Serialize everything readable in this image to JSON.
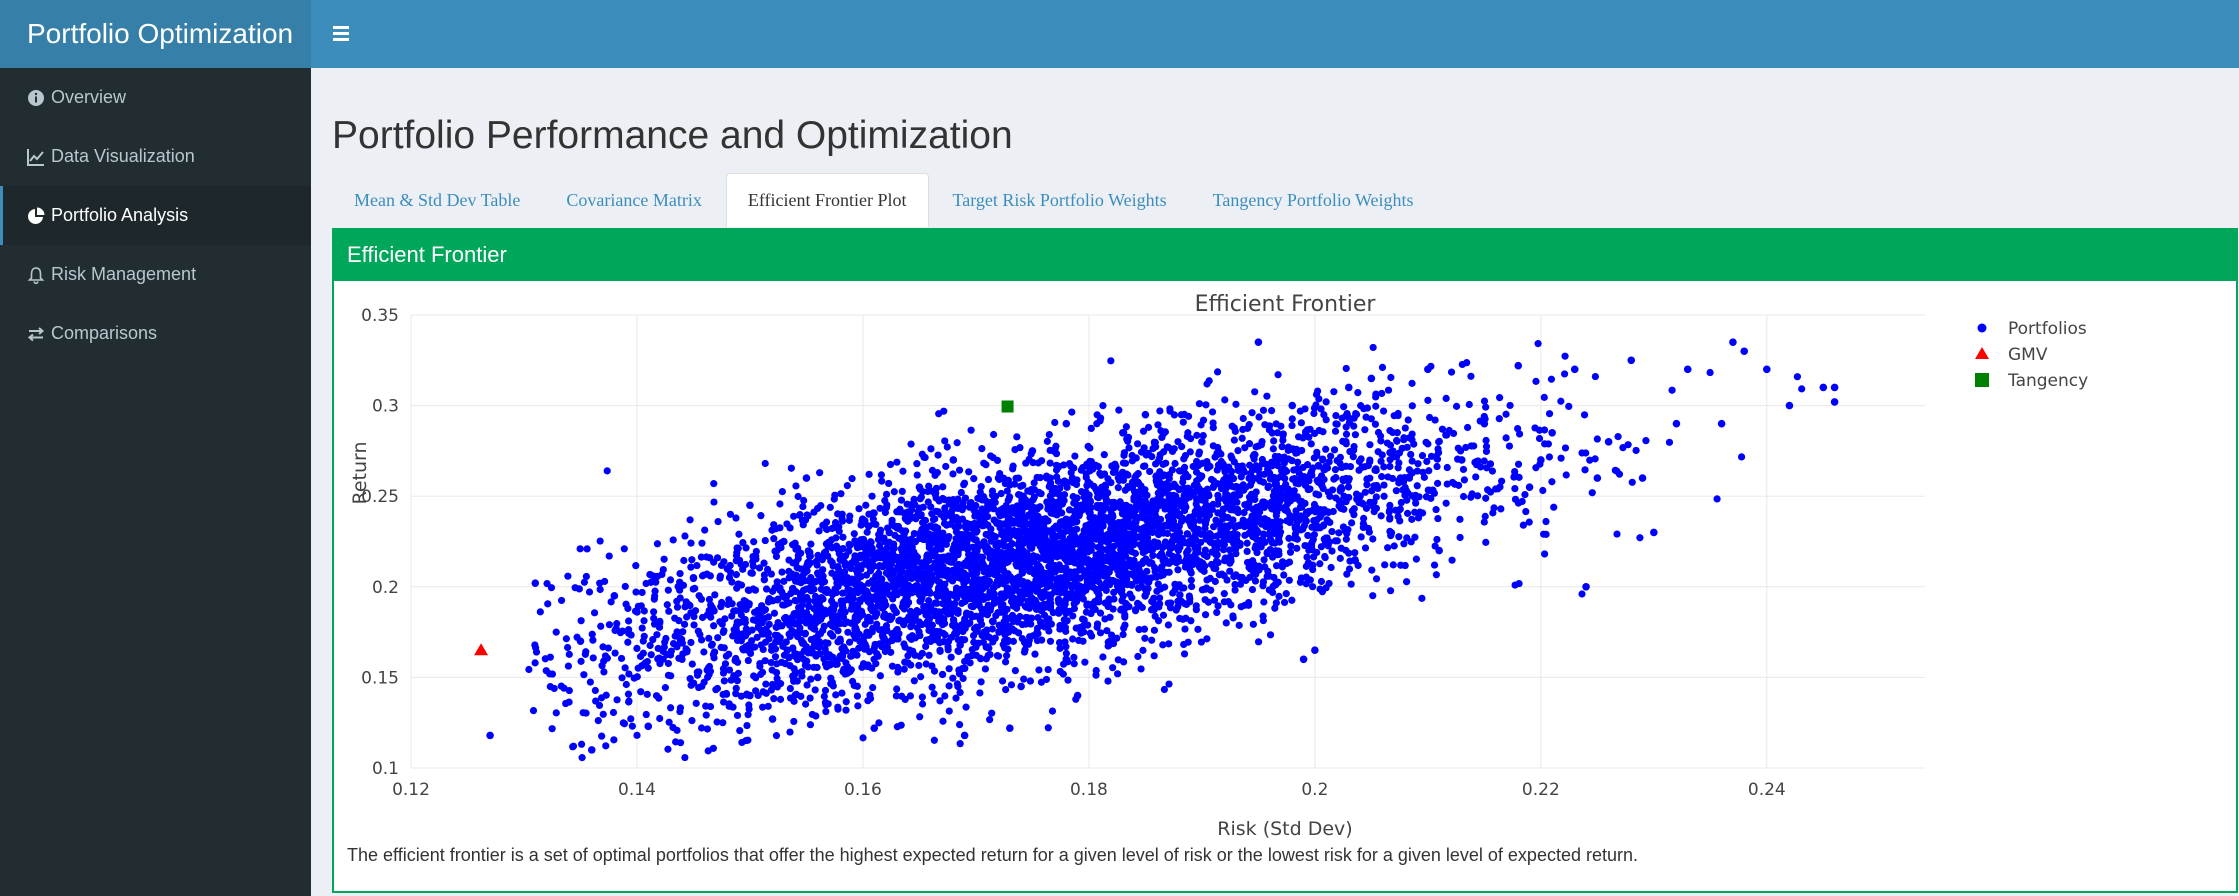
{
  "app": {
    "title": "Portfolio Optimization"
  },
  "sidebar": {
    "items": [
      {
        "label": "Overview",
        "icon": "info-circle-icon",
        "active": false
      },
      {
        "label": "Data Visualization",
        "icon": "line-chart-icon",
        "active": false
      },
      {
        "label": "Portfolio Analysis",
        "icon": "pie-chart-icon",
        "active": true
      },
      {
        "label": "Risk Management",
        "icon": "bell-icon",
        "active": false
      },
      {
        "label": "Comparisons",
        "icon": "exchange-icon",
        "active": false
      }
    ]
  },
  "main": {
    "page_title": "Portfolio Performance and Optimization",
    "tabs": [
      {
        "label": "Mean & Std Dev Table",
        "active": false
      },
      {
        "label": "Covariance Matrix",
        "active": false
      },
      {
        "label": "Efficient Frontier Plot",
        "active": true
      },
      {
        "label": "Target Risk Portfolio Weights",
        "active": false
      },
      {
        "label": "Tangency Portfolio Weights",
        "active": false
      }
    ],
    "box_title": "Efficient Frontier",
    "caption": "The efficient frontier is a set of optimal portfolios that offer the highest expected return for a given level of risk or the lowest risk for a given level of expected return."
  },
  "colors": {
    "header": "#3c8dbc",
    "sidebar": "#222d32",
    "box": "#00a65a",
    "portfolios": "#0000ff",
    "gmv": "#ff0000",
    "tangency": "#008000"
  },
  "chart_data": {
    "type": "scatter",
    "title": "Efficient Frontier",
    "xlabel": "Risk (Std Dev)",
    "ylabel": "Return",
    "xlim": [
      0.12,
      0.254
    ],
    "ylim": [
      0.1,
      0.35
    ],
    "xticks": [
      "0.12",
      "0.14",
      "0.16",
      "0.18",
      "0.2",
      "0.22",
      "0.24"
    ],
    "yticks": [
      "0.1",
      "0.15",
      "0.2",
      "0.25",
      "0.3",
      "0.35"
    ],
    "grid": true,
    "legend_position": "top-right",
    "series": [
      {
        "name": "Portfolios",
        "marker": "circle",
        "color": "#0000ff",
        "note": "dense cloud of simulated portfolios; representative sample of visible points",
        "x": [
          0.127,
          0.136,
          0.141,
          0.152,
          0.161,
          0.169,
          0.173,
          0.131,
          0.135,
          0.138,
          0.142,
          0.145,
          0.148,
          0.15,
          0.153,
          0.155,
          0.158,
          0.16,
          0.162,
          0.165,
          0.168,
          0.17,
          0.172,
          0.175,
          0.178,
          0.18,
          0.183,
          0.185,
          0.188,
          0.19,
          0.193,
          0.195,
          0.198,
          0.2,
          0.203,
          0.205,
          0.208,
          0.21,
          0.213,
          0.215,
          0.218,
          0.22,
          0.223,
          0.225,
          0.228,
          0.23,
          0.233,
          0.237,
          0.238,
          0.24,
          0.242,
          0.245,
          0.246,
          0.246,
          0.236,
          0.199,
          0.224,
          0.219,
          0.221,
          0.226,
          0.229,
          0.232,
          0.178,
          0.169,
          0.166,
          0.15,
          0.156,
          0.175,
          0.182,
          0.188,
          0.196,
          0.204,
          0.211,
          0.174,
          0.179
        ],
        "y": [
          0.118,
          0.11,
          0.123,
          0.127,
          0.122,
          0.118,
          0.122,
          0.202,
          0.17,
          0.195,
          0.18,
          0.205,
          0.21,
          0.245,
          0.225,
          0.26,
          0.215,
          0.235,
          0.19,
          0.255,
          0.27,
          0.2,
          0.26,
          0.275,
          0.29,
          0.21,
          0.285,
          0.295,
          0.24,
          0.28,
          0.25,
          0.335,
          0.3,
          0.165,
          0.31,
          0.315,
          0.26,
          0.32,
          0.27,
          0.29,
          0.322,
          0.27,
          0.32,
          0.26,
          0.325,
          0.23,
          0.32,
          0.335,
          0.33,
          0.32,
          0.3,
          0.31,
          0.31,
          0.302,
          0.29,
          0.16,
          0.2,
          0.255,
          0.285,
          0.28,
          0.26,
          0.29,
          0.16,
          0.155,
          0.17,
          0.14,
          0.15,
          0.19,
          0.215,
          0.23,
          0.245,
          0.25,
          0.22,
          0.145,
          0.14
        ]
      },
      {
        "name": "GMV",
        "marker": "triangle",
        "color": "#ff0000",
        "x": [
          0.1262
        ],
        "y": [
          0.165
        ]
      },
      {
        "name": "Tangency",
        "marker": "square",
        "color": "#008000",
        "x": [
          0.1728
        ],
        "y": [
          0.2995
        ]
      }
    ]
  }
}
